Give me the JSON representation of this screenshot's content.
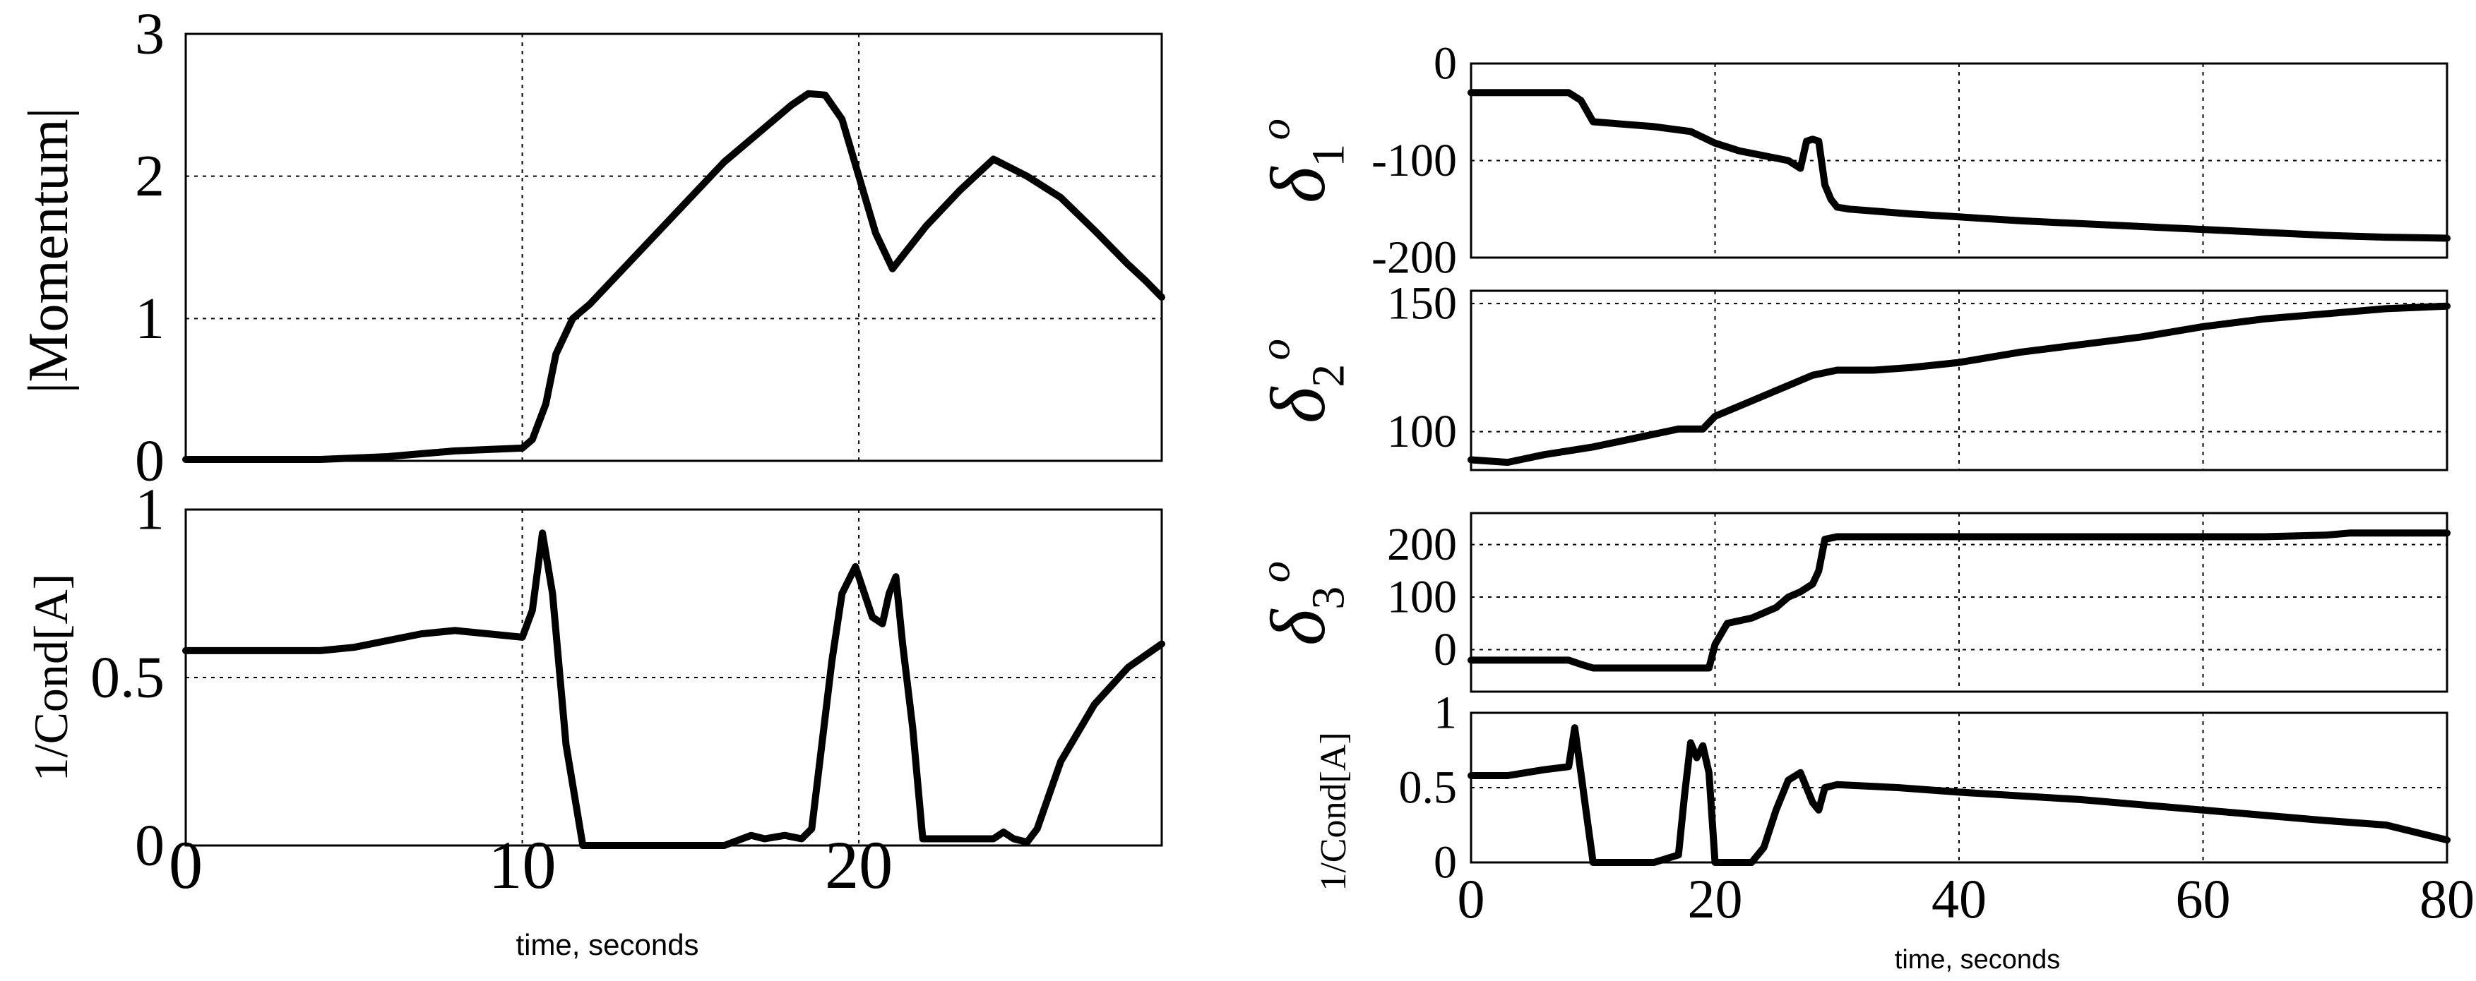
{
  "chart_data": [
    {
      "id": "momentum",
      "type": "line",
      "title": "",
      "xlabel": "",
      "ylabel": "|Momentum|",
      "xlim": [
        0,
        29
      ],
      "ylim": [
        0,
        3
      ],
      "xticks": [
        0,
        10,
        20
      ],
      "yticks": [
        0,
        1,
        2,
        3
      ],
      "grid": true,
      "series": [
        {
          "name": "|Momentum|",
          "x": [
            0,
            2,
            4,
            5,
            6,
            7,
            8,
            9,
            10,
            10.3,
            10.7,
            11,
            11.5,
            12,
            13,
            14,
            15,
            16,
            17,
            18,
            18.5,
            19,
            19.5,
            20,
            20.5,
            21,
            21.5,
            22,
            23,
            24,
            25,
            26,
            27,
            28,
            28.5,
            29
          ],
          "y": [
            0.01,
            0.01,
            0.01,
            0.02,
            0.03,
            0.05,
            0.07,
            0.08,
            0.09,
            0.15,
            0.4,
            0.75,
            1.0,
            1.1,
            1.35,
            1.6,
            1.85,
            2.1,
            2.3,
            2.5,
            2.58,
            2.57,
            2.4,
            2.0,
            1.6,
            1.35,
            1.5,
            1.65,
            1.9,
            2.12,
            2.0,
            1.85,
            1.62,
            1.38,
            1.27,
            1.15
          ]
        }
      ]
    },
    {
      "id": "cond-left",
      "type": "line",
      "title": "",
      "xlabel": "time, seconds",
      "ylabel": "1/Cond[A]",
      "xlim": [
        0,
        29
      ],
      "ylim": [
        0,
        1
      ],
      "xticks": [
        0,
        10,
        20
      ],
      "yticks": [
        0,
        0.5,
        1
      ],
      "ytick_labels": [
        "0",
        "0.5",
        "1"
      ],
      "grid": true,
      "series": [
        {
          "name": "1/Cond[A]",
          "x": [
            0,
            2,
            4,
            5,
            6,
            7,
            8,
            9,
            10,
            10.3,
            10.6,
            10.9,
            11.3,
            11.8,
            12.5,
            14,
            16,
            16.8,
            17.2,
            17.8,
            18.3,
            18.6,
            18.9,
            19.2,
            19.5,
            19.9,
            20.1,
            20.4,
            20.7,
            20.9,
            21.1,
            21.3,
            21.6,
            21.9,
            22.2,
            23,
            24,
            24.3,
            24.6,
            25,
            25.3,
            26,
            27,
            28,
            29
          ],
          "y": [
            0.58,
            0.58,
            0.58,
            0.59,
            0.61,
            0.63,
            0.64,
            0.63,
            0.62,
            0.7,
            0.93,
            0.75,
            0.3,
            0.0,
            0.0,
            0.0,
            0.0,
            0.03,
            0.02,
            0.03,
            0.02,
            0.05,
            0.3,
            0.55,
            0.75,
            0.83,
            0.77,
            0.68,
            0.66,
            0.75,
            0.8,
            0.6,
            0.35,
            0.02,
            0.02,
            0.02,
            0.02,
            0.04,
            0.02,
            0.01,
            0.05,
            0.25,
            0.42,
            0.53,
            0.6
          ]
        }
      ]
    },
    {
      "id": "delta1",
      "type": "line",
      "title": "",
      "xlabel": "",
      "ylabel": "δ1 o",
      "xlim": [
        0,
        80
      ],
      "ylim": [
        -200,
        0
      ],
      "xticks": [
        0,
        20,
        40,
        60,
        80
      ],
      "yticks": [
        -200,
        -100,
        0
      ],
      "grid": true,
      "series": [
        {
          "name": "δ1",
          "x": [
            0,
            4,
            8,
            9,
            10,
            12,
            15,
            18,
            20,
            22,
            24,
            26,
            27,
            27.5,
            28,
            28.5,
            29,
            29.5,
            30,
            31,
            33,
            36,
            40,
            45,
            50,
            55,
            60,
            65,
            70,
            75,
            80
          ],
          "y": [
            -30,
            -30,
            -30,
            -38,
            -60,
            -62,
            -65,
            -70,
            -82,
            -90,
            -95,
            -100,
            -108,
            -80,
            -78,
            -80,
            -125,
            -140,
            -148,
            -150,
            -152,
            -155,
            -158,
            -162,
            -165,
            -168,
            -171,
            -174,
            -177,
            -179,
            -180
          ]
        }
      ]
    },
    {
      "id": "delta2",
      "type": "line",
      "title": "",
      "xlabel": "",
      "ylabel": "δ2 o",
      "xlim": [
        0,
        80
      ],
      "ylim": [
        85,
        155
      ],
      "xticks": [
        0,
        20,
        40,
        60,
        80
      ],
      "yticks": [
        100,
        150
      ],
      "grid": true,
      "series": [
        {
          "name": "δ2",
          "x": [
            0,
            3,
            6,
            10,
            14,
            17,
            19,
            20,
            22,
            25,
            28,
            30,
            33,
            36,
            40,
            45,
            50,
            55,
            60,
            65,
            70,
            75,
            80
          ],
          "y": [
            89,
            88,
            91,
            94,
            98,
            101,
            101,
            106,
            110,
            116,
            122,
            124,
            124,
            125,
            127,
            131,
            134,
            137,
            141,
            144,
            146,
            148,
            149
          ]
        }
      ]
    },
    {
      "id": "delta3",
      "type": "line",
      "title": "",
      "xlabel": "",
      "ylabel": "δ3 o",
      "xlim": [
        0,
        80
      ],
      "ylim": [
        -80,
        260
      ],
      "xticks": [
        0,
        20,
        40,
        60,
        80
      ],
      "yticks": [
        0,
        100,
        200
      ],
      "grid": true,
      "series": [
        {
          "name": "δ3",
          "x": [
            0,
            3,
            6,
            8,
            9,
            10,
            12,
            15,
            18,
            19.5,
            20,
            21,
            23,
            25,
            26,
            27,
            28,
            28.5,
            29,
            30,
            35,
            40,
            50,
            60,
            65,
            70,
            72,
            80
          ],
          "y": [
            -20,
            -20,
            -20,
            -20,
            -28,
            -35,
            -35,
            -35,
            -35,
            -35,
            10,
            50,
            60,
            80,
            100,
            110,
            125,
            150,
            210,
            215,
            215,
            215,
            215,
            215,
            215,
            218,
            222,
            222
          ]
        }
      ]
    },
    {
      "id": "cond-right",
      "type": "line",
      "title": "",
      "xlabel": "time, seconds",
      "ylabel": "1/Cond[A]",
      "xlim": [
        0,
        80
      ],
      "ylim": [
        0,
        1
      ],
      "xticks": [
        0,
        20,
        40,
        60,
        80
      ],
      "yticks": [
        0,
        0.5,
        1
      ],
      "ytick_labels": [
        "0",
        "0.5",
        "1"
      ],
      "grid": true,
      "series": [
        {
          "name": "1/Cond[A]",
          "x": [
            0,
            3,
            6,
            8,
            8.5,
            9,
            9.5,
            10,
            12,
            15,
            17,
            17.5,
            18,
            18.5,
            19,
            19.5,
            20,
            20.5,
            21,
            23,
            24,
            25,
            26,
            27,
            28,
            28.5,
            29,
            30,
            35,
            40,
            50,
            60,
            70,
            75,
            80
          ],
          "y": [
            0.58,
            0.58,
            0.62,
            0.64,
            0.9,
            0.6,
            0.3,
            0.0,
            0.0,
            0.0,
            0.05,
            0.45,
            0.8,
            0.7,
            0.78,
            0.6,
            0.0,
            0.0,
            0.0,
            0.0,
            0.1,
            0.35,
            0.55,
            0.6,
            0.4,
            0.35,
            0.5,
            0.52,
            0.5,
            0.47,
            0.42,
            0.35,
            0.28,
            0.25,
            0.15
          ]
        }
      ]
    }
  ]
}
